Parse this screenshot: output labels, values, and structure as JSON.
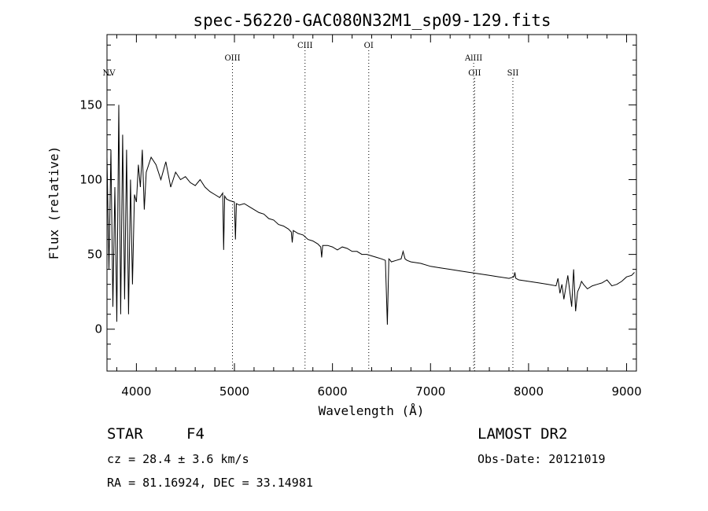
{
  "chart_data": {
    "type": "line",
    "title": "spec-56220-GAC080N32M1_sp09-129.fits",
    "xlabel": "Wavelength (Å)",
    "ylabel": "Flux (relative)",
    "xlim": [
      3700,
      9100
    ],
    "ylim": [
      -28,
      197
    ],
    "xticks": [
      4000,
      5000,
      6000,
      7000,
      8000,
      9000
    ],
    "yticks": [
      0,
      50,
      100,
      150
    ],
    "spectral_lines": [
      {
        "name": "NV",
        "wavelength": 3720,
        "tier": "low"
      },
      {
        "name": "OIII",
        "wavelength": 4980,
        "tier": "mid"
      },
      {
        "name": "CIII",
        "wavelength": 5720,
        "tier": "high"
      },
      {
        "name": "OI",
        "wavelength": 6370,
        "tier": "high"
      },
      {
        "name": "AlIII",
        "wavelength": 7440,
        "tier": "mid"
      },
      {
        "name": "OII",
        "wavelength": 7450,
        "tier": "low"
      },
      {
        "name": "SII",
        "wavelength": 7840,
        "tier": "low"
      }
    ],
    "series": [
      {
        "name": "flux",
        "x": [
          3700,
          3720,
          3740,
          3760,
          3780,
          3800,
          3820,
          3840,
          3860,
          3880,
          3900,
          3920,
          3940,
          3960,
          3980,
          4000,
          4020,
          4040,
          4060,
          4080,
          4100,
          4150,
          4200,
          4250,
          4300,
          4350,
          4400,
          4450,
          4500,
          4550,
          4600,
          4650,
          4700,
          4750,
          4800,
          4850,
          4880,
          4890,
          4900,
          4920,
          4950,
          5000,
          5010,
          5020,
          5050,
          5100,
          5150,
          5200,
          5250,
          5300,
          5350,
          5400,
          5450,
          5500,
          5550,
          5580,
          5590,
          5600,
          5650,
          5700,
          5750,
          5800,
          5850,
          5880,
          5890,
          5900,
          5950,
          6000,
          6050,
          6100,
          6150,
          6200,
          6250,
          6300,
          6350,
          6400,
          6450,
          6500,
          6540,
          6560,
          6575,
          6590,
          6600,
          6650,
          6700,
          6720,
          6740,
          6760,
          6800,
          6900,
          7000,
          7100,
          7200,
          7300,
          7400,
          7500,
          7600,
          7700,
          7800,
          7850,
          7860,
          7870,
          7900,
          8000,
          8100,
          8200,
          8280,
          8300,
          8320,
          8340,
          8360,
          8400,
          8440,
          8460,
          8480,
          8500,
          8520,
          8540,
          8560,
          8600,
          8650,
          8700,
          8750,
          8800,
          8850,
          8900,
          8950,
          9000,
          9050,
          9080
        ],
        "values": [
          115,
          40,
          120,
          15,
          95,
          5,
          150,
          10,
          130,
          20,
          120,
          10,
          100,
          30,
          90,
          85,
          110,
          95,
          120,
          80,
          105,
          115,
          110,
          100,
          112,
          95,
          105,
          100,
          102,
          98,
          96,
          100,
          95,
          92,
          90,
          88,
          91,
          53,
          89,
          87,
          86,
          85,
          60,
          84,
          83,
          84,
          82,
          80,
          78,
          77,
          74,
          73,
          70,
          69,
          67,
          65,
          58,
          66,
          64,
          63,
          60,
          59,
          57,
          55,
          48,
          56,
          56,
          55,
          53,
          55,
          54,
          52,
          52,
          50,
          50,
          49,
          48,
          47,
          46,
          3,
          47,
          46,
          45,
          46,
          47,
          52,
          47,
          46,
          45,
          44,
          42,
          41,
          40,
          39,
          38,
          37,
          36,
          35,
          34,
          35,
          38,
          34,
          33,
          32,
          31,
          30,
          29,
          34,
          24,
          30,
          20,
          36,
          15,
          40,
          12,
          25,
          28,
          32,
          30,
          27,
          29,
          30,
          31,
          33,
          29,
          30,
          32,
          35,
          36,
          38
        ]
      }
    ]
  },
  "info": {
    "object_class": "STAR",
    "subclass": "F4",
    "release": "LAMOST DR2",
    "cz": "cz = 28.4 ± 3.6 km/s",
    "obs_date": "Obs-Date: 20121019",
    "coords": "RA =  81.16924, DEC =  33.14981"
  }
}
